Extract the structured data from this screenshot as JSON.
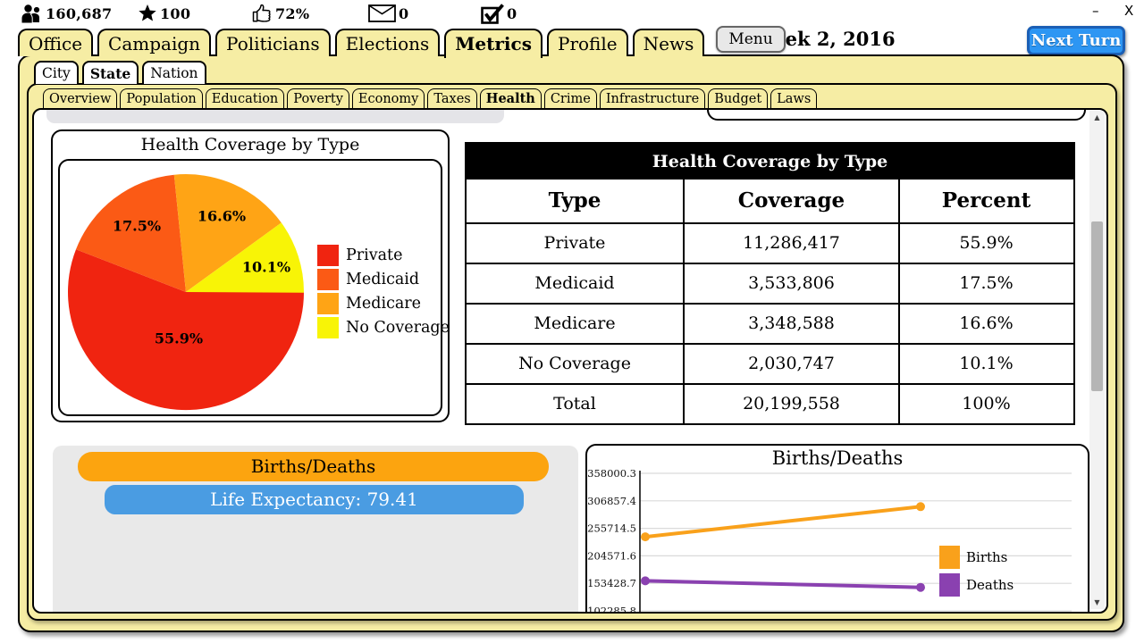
{
  "window": {
    "minimize_label": "–",
    "close_label": "X"
  },
  "stats": [
    {
      "id": "population",
      "icon": "people-icon",
      "value": "160,687"
    },
    {
      "id": "stars",
      "icon": "star-icon",
      "value": "100"
    },
    {
      "id": "approval",
      "icon": "thumbs-up-icon",
      "value": "72%"
    },
    {
      "id": "messages",
      "icon": "mail-icon",
      "value": "0"
    },
    {
      "id": "tasks",
      "icon": "checkbox-icon",
      "value": "0"
    }
  ],
  "header": {
    "week_label": "Week 2, 2016",
    "next_turn_label": "Next Turn",
    "menu_label": "Menu"
  },
  "main_tabs": [
    {
      "label": "Office",
      "active": false
    },
    {
      "label": "Campaign",
      "active": false
    },
    {
      "label": "Politicians",
      "active": false
    },
    {
      "label": "Elections",
      "active": false
    },
    {
      "label": "Metrics",
      "active": true
    },
    {
      "label": "Profile",
      "active": false
    },
    {
      "label": "News",
      "active": false
    }
  ],
  "level_tabs": [
    {
      "label": "City",
      "active": false
    },
    {
      "label": "State",
      "active": true
    },
    {
      "label": "Nation",
      "active": false
    }
  ],
  "metric_tabs": [
    {
      "label": "Overview",
      "active": false
    },
    {
      "label": "Population",
      "active": false
    },
    {
      "label": "Education",
      "active": false
    },
    {
      "label": "Poverty",
      "active": false
    },
    {
      "label": "Economy",
      "active": false
    },
    {
      "label": "Taxes",
      "active": false
    },
    {
      "label": "Health",
      "active": true
    },
    {
      "label": "Crime",
      "active": false
    },
    {
      "label": "Infrastructure",
      "active": false
    },
    {
      "label": "Budget",
      "active": false
    },
    {
      "label": "Laws",
      "active": false
    }
  ],
  "coverage_table": {
    "title": "Health Coverage by Type",
    "columns": [
      "Type",
      "Coverage",
      "Percent"
    ],
    "rows": [
      [
        "Private",
        "11,286,417",
        "55.9%"
      ],
      [
        "Medicaid",
        "3,533,806",
        "17.5%"
      ],
      [
        "Medicare",
        "3,348,588",
        "16.6%"
      ],
      [
        "No Coverage",
        "2,030,747",
        "10.1%"
      ],
      [
        "Total",
        "20,199,558",
        "100%"
      ]
    ]
  },
  "births_deaths_panel": {
    "header_label": "Births/Deaths",
    "life_expectancy_label": "Life Expectancy: 79.41"
  },
  "chart_data": [
    {
      "type": "pie",
      "title": "Health Coverage by Type",
      "labels": [
        "Private",
        "Medicaid",
        "Medicare",
        "No Coverage"
      ],
      "values": [
        55.9,
        17.5,
        16.6,
        10.1
      ],
      "value_labels": [
        "55.9%",
        "17.5%",
        "16.6%",
        "10.1%"
      ],
      "colors": [
        "#F02410",
        "#FB5A15",
        "#FFA415",
        "#F8F406"
      ],
      "start_angle_deg": 0,
      "direction": "clockwise",
      "legend_position": "right"
    },
    {
      "type": "line",
      "title": "Births/Deaths",
      "x": [
        1,
        2
      ],
      "series": [
        {
          "name": "Births",
          "color": "#F9A11B",
          "values": [
            240000,
            296000
          ]
        },
        {
          "name": "Deaths",
          "color": "#8A41B0",
          "values": [
            158000,
            146000
          ]
        }
      ],
      "y_ticks": [
        358000.3,
        306857.4,
        255714.5,
        204571.6,
        153428.7,
        102285.8
      ],
      "ylim": [
        102285.8,
        358000.3
      ],
      "grid": true,
      "legend_position": "right"
    }
  ]
}
